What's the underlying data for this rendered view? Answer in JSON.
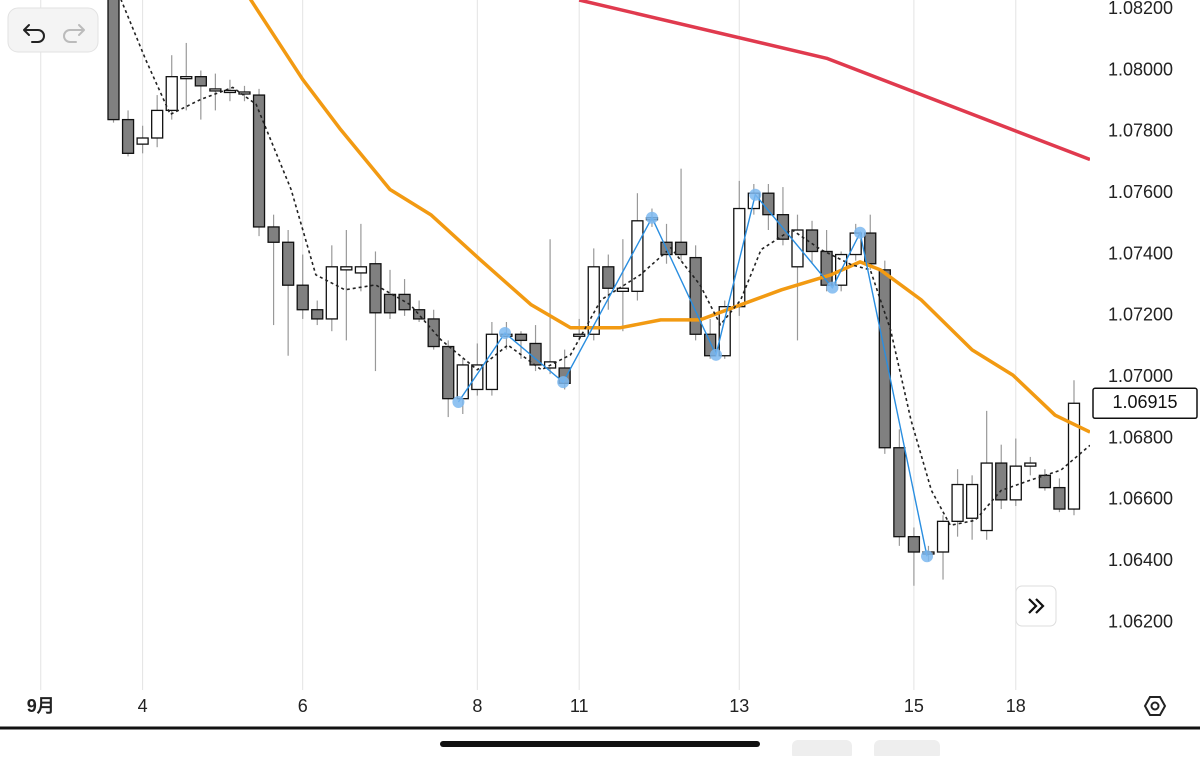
{
  "chart_data": {
    "type": "candlestick",
    "xlim": [
      -7.8,
      67.1
    ],
    "ylim": [
      1.0598,
      1.0823
    ],
    "xticks": [
      {
        "value": -5,
        "label": "9月"
      },
      {
        "value": 2,
        "label": "4"
      },
      {
        "value": 13,
        "label": "6"
      },
      {
        "value": 25,
        "label": "8"
      },
      {
        "value": 32,
        "label": "11"
      },
      {
        "value": 43,
        "label": "13"
      },
      {
        "value": 55,
        "label": "15"
      },
      {
        "value": 62,
        "label": "18"
      }
    ],
    "yticks": [
      {
        "value": 1.082,
        "label": "1.08200"
      },
      {
        "value": 1.08,
        "label": "1.08000"
      },
      {
        "value": 1.078,
        "label": "1.07800"
      },
      {
        "value": 1.076,
        "label": "1.07600"
      },
      {
        "value": 1.074,
        "label": "1.07400"
      },
      {
        "value": 1.072,
        "label": "1.07200"
      },
      {
        "value": 1.07,
        "label": "1.07000"
      },
      {
        "value": 1.068,
        "label": "1.06800"
      },
      {
        "value": 1.066,
        "label": "1.06600"
      },
      {
        "value": 1.064,
        "label": "1.06400"
      },
      {
        "value": 1.062,
        "label": "1.06200"
      }
    ],
    "grid": true,
    "up_color": "#ffffff",
    "down_color": "#808080",
    "x": [
      0,
      1,
      2,
      3,
      4,
      5,
      6,
      7,
      8,
      9,
      10,
      11,
      12,
      13,
      14,
      15,
      16,
      17,
      18,
      19,
      20,
      21,
      22,
      23,
      24,
      25,
      26,
      27,
      28,
      29,
      30,
      31,
      32,
      33,
      34,
      35,
      36,
      37,
      38,
      39,
      40,
      41,
      42,
      43,
      44,
      45,
      46,
      47,
      48,
      49,
      50,
      51,
      52,
      53,
      54,
      55,
      56,
      57,
      58,
      59,
      60,
      61,
      62,
      63,
      64,
      65,
      66
    ],
    "open": [
      1.0825,
      1.0784,
      1.0776,
      1.0778,
      1.0787,
      1.07975,
      1.0798,
      1.0794,
      1.07935,
      1.0793,
      1.0792,
      1.0749,
      1.0744,
      1.073,
      1.0722,
      1.0719,
      1.0735,
      1.0734,
      1.0737,
      1.0727,
      1.0727,
      1.0722,
      1.0719,
      1.071,
      1.0693,
      1.0696,
      1.0696,
      1.0714,
      1.0714,
      1.0711,
      1.0703,
      1.0703,
      1.0714,
      1.0714,
      1.0736,
      1.0728,
      1.0728,
      1.0752,
      1.0744,
      1.0744,
      1.0739,
      1.0714,
      1.0707,
      1.0723,
      1.0755,
      1.076,
      1.0753,
      1.0736,
      1.0748,
      1.0741,
      1.073,
      1.074,
      1.0747,
      1.0735,
      1.0677,
      1.0648,
      1.0643,
      1.0643,
      1.0653,
      1.0654,
      1.065,
      1.0672,
      1.066,
      1.0671,
      1.0668,
      1.0664,
      1.0657
    ],
    "high": [
      1.083,
      1.0787,
      1.0782,
      1.0792,
      1.0805,
      1.0809,
      1.08,
      1.0799,
      1.0797,
      1.0795,
      1.0794,
      1.0753,
      1.0748,
      1.074,
      1.0725,
      1.0743,
      1.0748,
      1.075,
      1.0741,
      1.0735,
      1.0732,
      1.0725,
      1.0722,
      1.0712,
      1.0706,
      1.0711,
      1.0718,
      1.0718,
      1.0715,
      1.0717,
      1.0745,
      1.0709,
      1.0719,
      1.0742,
      1.074,
      1.0745,
      1.076,
      1.0755,
      1.075,
      1.0768,
      1.0743,
      1.0719,
      1.0725,
      1.0764,
      1.0763,
      1.0763,
      1.0762,
      1.0753,
      1.0751,
      1.0748,
      1.0741,
      1.075,
      1.0753,
      1.0738,
      1.0683,
      1.0651,
      1.0645,
      1.0655,
      1.067,
      1.0668,
      1.0689,
      1.0678,
      1.068,
      1.0674,
      1.067,
      1.0667,
      1.0699
    ],
    "low": [
      1.0783,
      1.0772,
      1.0773,
      1.0775,
      1.0784,
      1.0787,
      1.0784,
      1.0787,
      1.079,
      1.079,
      1.0746,
      1.0717,
      1.0707,
      1.0719,
      1.0717,
      1.0715,
      1.0712,
      1.0728,
      1.0702,
      1.0719,
      1.072,
      1.0718,
      1.0709,
      1.0687,
      1.0688,
      1.0694,
      1.0694,
      1.0709,
      1.0706,
      1.0702,
      1.0701,
      1.0696,
      1.0712,
      1.0712,
      1.0722,
      1.0715,
      1.0725,
      1.0749,
      1.0737,
      1.0738,
      1.0712,
      1.0706,
      1.0706,
      1.072,
      1.0753,
      1.0748,
      1.0743,
      1.0712,
      1.0737,
      1.0728,
      1.0728,
      1.0738,
      1.0735,
      1.0675,
      1.0645,
      1.0632,
      1.064,
      1.0634,
      1.0648,
      1.0647,
      1.0647,
      1.0657,
      1.0658,
      1.0668,
      1.0663,
      1.0656,
      1.0655
    ],
    "close": [
      1.0784,
      1.0773,
      1.0778,
      1.0787,
      1.0798,
      1.0798,
      1.0795,
      1.0794,
      1.07935,
      1.0793,
      1.0749,
      1.0744,
      1.073,
      1.0722,
      1.0719,
      1.0736,
      1.0736,
      1.0736,
      1.0721,
      1.0721,
      1.0722,
      1.0719,
      1.071,
      1.0693,
      1.0704,
      1.0704,
      1.0714,
      1.0714,
      1.0712,
      1.0704,
      1.0705,
      1.0698,
      1.0714,
      1.0736,
      1.0729,
      1.0729,
      1.0751,
      1.0752,
      1.074,
      1.074,
      1.0714,
      1.0707,
      1.0723,
      1.0755,
      1.076,
      1.0753,
      1.0745,
      1.0748,
      1.0741,
      1.073,
      1.074,
      1.0747,
      1.0737,
      1.0677,
      1.0648,
      1.0643,
      1.0643,
      1.0653,
      1.0665,
      1.0665,
      1.0672,
      1.066,
      1.0671,
      1.0672,
      1.0664,
      1.0657,
      1.06915
    ],
    "lines": [
      {
        "color": "#e03a4e",
        "x": [
          32,
          49,
          67.1
        ],
        "values": [
          1.0823,
          1.0804,
          1.0771
        ]
      },
      {
        "color": "#f29a12",
        "x": [
          9.4,
          13,
          15.6,
          19,
          21.8,
          25.2,
          28.7,
          31.4,
          34.8,
          37.6,
          40.3,
          43.1,
          45.9,
          49.3,
          51.3,
          52.7,
          55.5,
          59,
          61.8,
          64.7,
          67.1
        ],
        "values": [
          1.08233,
          1.07971,
          1.07808,
          1.07612,
          1.0753,
          1.07383,
          1.07236,
          1.07161,
          1.07161,
          1.07187,
          1.07187,
          1.07236,
          1.07285,
          1.07334,
          1.07376,
          1.0735,
          1.07252,
          1.07089,
          1.07007,
          1.06876,
          1.06821
        ]
      },
      {
        "color": "#222222",
        "dashed": true,
        "x": [
          0.5,
          2.2,
          3.9,
          6,
          8.2,
          9.8,
          12.2,
          13.9,
          15.9,
          18,
          20.4,
          22.5,
          25,
          27.1,
          29.4,
          31.4,
          33.5,
          36.2,
          38.3,
          40.3,
          41.7,
          43.1,
          44.5,
          46.6,
          48.6,
          50.7,
          52,
          53.4,
          54.8,
          56.2,
          57.5,
          59.2,
          61,
          63,
          65.1,
          67.1
        ],
        "values": [
          1.08233,
          1.08037,
          1.07857,
          1.07906,
          1.07945,
          1.0789,
          1.07612,
          1.07334,
          1.07285,
          1.07301,
          1.07236,
          1.07122,
          1.07024,
          1.07105,
          1.07024,
          1.07073,
          1.07252,
          1.07334,
          1.07422,
          1.07301,
          1.07171,
          1.07252,
          1.07416,
          1.07481,
          1.07416,
          1.07367,
          1.0735,
          1.07154,
          1.0686,
          1.06631,
          1.06517,
          1.06533,
          1.06631,
          1.06664,
          1.06697,
          1.06778
        ]
      }
    ],
    "zigzag": {
      "color": "#2a8ee0",
      "marker_color": "#7db9f0",
      "x": [
        23.7,
        26.9,
        30.9,
        37,
        41.4,
        44.1,
        49.4,
        51.3,
        55.9
      ],
      "values": [
        1.06919,
        1.07144,
        1.06984,
        1.0752,
        1.07073,
        1.07595,
        1.07292,
        1.07471,
        1.06416
      ]
    },
    "last_price": {
      "value": 1.06915,
      "label": "1.06915"
    }
  }
}
